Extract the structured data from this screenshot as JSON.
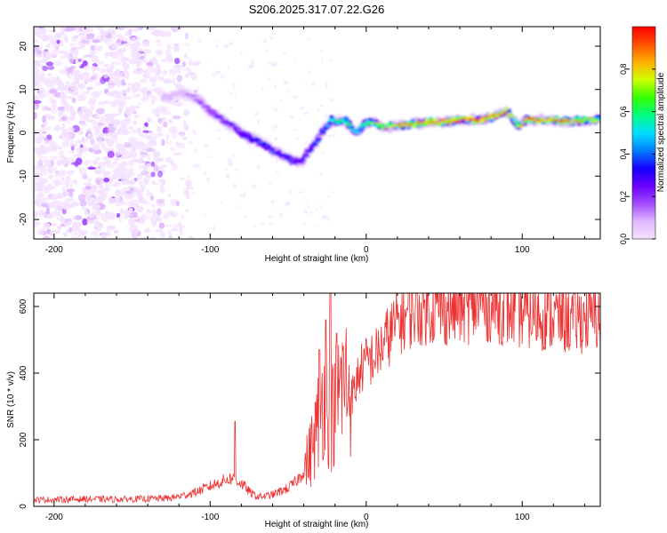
{
  "title": "S206.2025.317.07.22.G26",
  "colors": {
    "snr_line": "#ee3333",
    "colormap": [
      "#f4e2ff",
      "#e0b8ff",
      "#a24bff",
      "#6a00ff",
      "#1500ff",
      "#0080ff",
      "#00e0ff",
      "#00ff80",
      "#33ff00",
      "#d0ff00",
      "#ffb000",
      "#ff5000",
      "#ff0000"
    ]
  },
  "chart_data": [
    {
      "type": "heatmap",
      "title": "S206.2025.317.07.22.G26",
      "xlabel": "Height of straight line (km)",
      "ylabel": "Frequency (Hz)",
      "xlim": [
        -213,
        150
      ],
      "ylim": [
        -24.5,
        24.5
      ],
      "xticks": [
        -200,
        -100,
        0,
        100
      ],
      "xtick_labels": [
        "-200",
        "-100",
        "0",
        "100"
      ],
      "yticks": [
        -20,
        -10,
        0,
        10,
        20
      ],
      "ytick_labels": [
        "-20",
        "-10",
        "0",
        "10",
        "20"
      ],
      "noise_region_x": [
        -213,
        -115
      ],
      "ridge": {
        "x": [
          -130,
          -118,
          -108,
          -100,
          -92,
          -84,
          -76,
          -68,
          -60,
          -52,
          -46,
          -42,
          -38,
          -34,
          -30,
          -26,
          -22,
          -18,
          -14,
          -10,
          -6,
          -2,
          2,
          6,
          10,
          20,
          30,
          40,
          50,
          60,
          70,
          80,
          86,
          90,
          94,
          98,
          102,
          110,
          120,
          130,
          140,
          150
        ],
        "frequency": [
          8,
          9,
          8,
          5,
          3,
          1,
          -1,
          -2,
          -4,
          -5.5,
          -6.5,
          -7,
          -5,
          -3,
          -1,
          1.5,
          3,
          2.5,
          3,
          1.5,
          0,
          1.5,
          2.5,
          2,
          1.5,
          1.5,
          2,
          2.5,
          2.5,
          3,
          3,
          3.5,
          4.5,
          5,
          3,
          1.5,
          3,
          3,
          3,
          2.5,
          3,
          3
        ],
        "amplitude": [
          0.12,
          0.15,
          0.2,
          0.25,
          0.28,
          0.32,
          0.36,
          0.4,
          0.38,
          0.35,
          0.34,
          0.3,
          0.34,
          0.38,
          0.42,
          0.45,
          0.55,
          0.6,
          0.62,
          0.6,
          0.55,
          0.6,
          0.7,
          0.75,
          0.8,
          0.85,
          0.9,
          0.9,
          0.95,
          0.97,
          0.97,
          0.98,
          0.95,
          0.9,
          0.85,
          0.8,
          0.9,
          0.92,
          0.9,
          0.88,
          0.85,
          0.85
        ]
      },
      "colorbar": {
        "label": "Normalized spectral amplitude",
        "range": [
          0,
          1
        ],
        "ticks": [
          0.0,
          0.2,
          0.4,
          0.6,
          0.8
        ],
        "tick_labels": [
          "0.0",
          "0.2",
          "0.4",
          "0.6",
          "0.8"
        ]
      }
    },
    {
      "type": "line",
      "xlabel": "Height of straight line (km)",
      "ylabel": "SNR (10 * v/v)",
      "xlim": [
        -213,
        150
      ],
      "ylim": [
        0,
        640
      ],
      "xticks": [
        -200,
        -100,
        0,
        100
      ],
      "xtick_labels": [
        "-200",
        "-100",
        "0",
        "100"
      ],
      "yticks": [
        0,
        200,
        400,
        600
      ],
      "ytick_labels": [
        "0",
        "200",
        "400",
        "600"
      ],
      "series": [
        {
          "name": "SNR",
          "x": [
            -213,
            -200,
            -180,
            -160,
            -140,
            -125,
            -115,
            -108,
            -100,
            -95,
            -90,
            -86,
            -82,
            -78,
            -74,
            -70,
            -65,
            -60,
            -55,
            -50,
            -46,
            -42,
            -38,
            -35,
            -32,
            -29,
            -26,
            -23,
            -20,
            -17,
            -14,
            -11,
            -8,
            -5,
            -2,
            2,
            6,
            10,
            14,
            18,
            22,
            26,
            30,
            35,
            40,
            50,
            60,
            70,
            80,
            90,
            100,
            110,
            120,
            130,
            140,
            150
          ],
          "values": [
            20,
            20,
            22,
            21,
            23,
            25,
            35,
            45,
            60,
            70,
            80,
            85,
            75,
            60,
            40,
            30,
            30,
            35,
            45,
            55,
            70,
            90,
            130,
            170,
            230,
            300,
            380,
            250,
            300,
            350,
            380,
            360,
            330,
            400,
            420,
            440,
            450,
            480,
            510,
            540,
            560,
            575,
            585,
            590,
            595,
            590,
            595,
            600,
            605,
            590,
            580,
            575,
            570,
            560,
            565,
            570
          ],
          "spikes": [
            {
              "x": -84,
              "value": 255
            },
            {
              "x": -30,
              "value": 470
            },
            {
              "x": -26,
              "value": 560
            },
            {
              "x": -23,
              "value": 640
            },
            {
              "x": -19,
              "value": 520
            }
          ]
        }
      ]
    }
  ]
}
